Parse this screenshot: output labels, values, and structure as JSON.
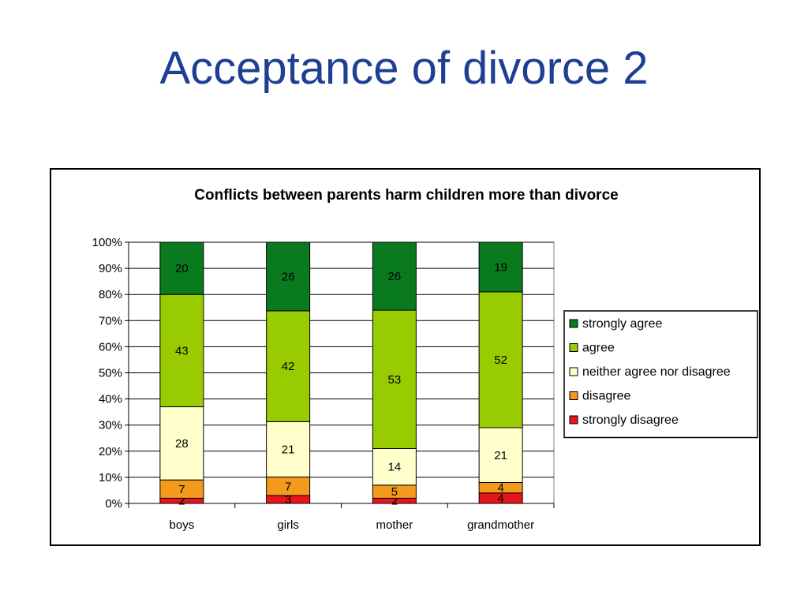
{
  "slide": {
    "title": "Acceptance of divorce 2"
  },
  "chart_data": {
    "type": "bar",
    "stacked": true,
    "percent_stacked": true,
    "title": "Conflicts between parents harm children more than divorce",
    "xlabel": "",
    "ylabel": "",
    "ylim": [
      0,
      100
    ],
    "y_ticks": [
      "0%",
      "10%",
      "20%",
      "30%",
      "40%",
      "50%",
      "60%",
      "70%",
      "80%",
      "90%",
      "100%"
    ],
    "grid": true,
    "legend_position": "right",
    "categories": [
      "boys",
      "girls",
      "mother",
      "grandmother"
    ],
    "series": [
      {
        "name": "strongly disagree",
        "color": "#e8141c",
        "values": [
          2,
          3,
          2,
          4
        ]
      },
      {
        "name": "disagree",
        "color": "#f39a1c",
        "values": [
          7,
          7,
          5,
          4
        ]
      },
      {
        "name": "neither agree nor disagree",
        "color": "#ffffcc",
        "values": [
          28,
          21,
          14,
          21
        ]
      },
      {
        "name": "agree",
        "color": "#99cc00",
        "values": [
          43,
          42,
          53,
          52
        ]
      },
      {
        "name": "strongly agree",
        "color": "#0a7a1e",
        "values": [
          20,
          26,
          26,
          19
        ]
      }
    ]
  }
}
